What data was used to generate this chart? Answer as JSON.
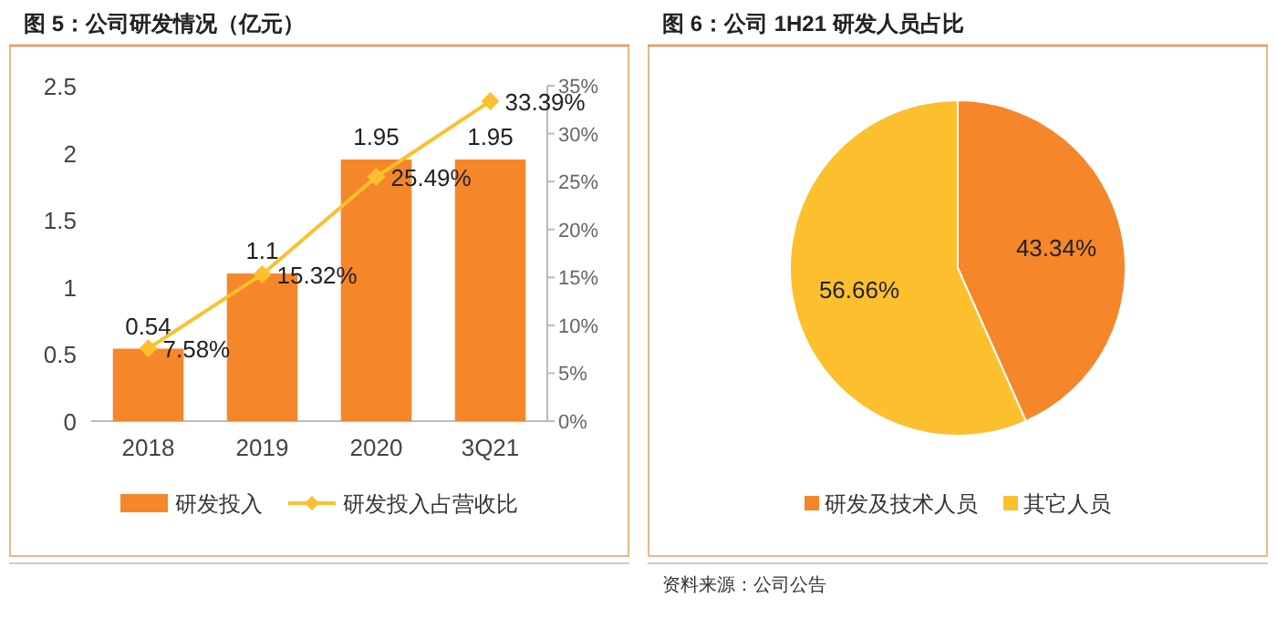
{
  "chart_data": [
    {
      "type": "bar",
      "title": "图 5：公司研发情况（亿元）",
      "categories": [
        "2018",
        "2019",
        "2020",
        "3Q21"
      ],
      "series": [
        {
          "name": "研发投入",
          "type": "bar",
          "color": "#f5862a",
          "values": [
            0.54,
            1.1,
            1.95,
            1.95
          ],
          "value_labels": [
            "0.54",
            "1.1",
            "1.95",
            "1.95"
          ]
        },
        {
          "name": "研发投入占营收比",
          "type": "line",
          "axis": "y2",
          "marker": "diamond",
          "color": "#fcc02e",
          "values": [
            7.58,
            15.32,
            25.49,
            33.39
          ],
          "value_labels": [
            "7.58%",
            "15.32%",
            "25.49%",
            "33.39%"
          ]
        }
      ],
      "ylim": [
        0,
        2.5
      ],
      "yticks": [
        0,
        0.5,
        1,
        1.5,
        2,
        2.5
      ],
      "y2lim": [
        0,
        35
      ],
      "y2ticks": [
        {
          "value": 0,
          "label": "0%"
        },
        {
          "value": 5,
          "label": "5%"
        },
        {
          "value": 10,
          "label": "10%"
        },
        {
          "value": 15,
          "label": "15%"
        },
        {
          "value": 20,
          "label": "20%"
        },
        {
          "value": 25,
          "label": "25%"
        },
        {
          "value": 30,
          "label": "30%"
        },
        {
          "value": 35,
          "label": "35%"
        }
      ],
      "legend": "bottom"
    },
    {
      "type": "pie",
      "title": "图 6：公司 1H21 研发人员占比",
      "categories": [
        "研发及技术人员",
        "其它人员"
      ],
      "values": [
        43.34,
        56.66
      ],
      "colors": [
        "#f5862a",
        "#fcc02e"
      ],
      "value_labels": [
        "43.34%",
        "56.66%"
      ],
      "legend": "bottom",
      "annotations": [
        "资料来源：公司公告"
      ]
    }
  ]
}
